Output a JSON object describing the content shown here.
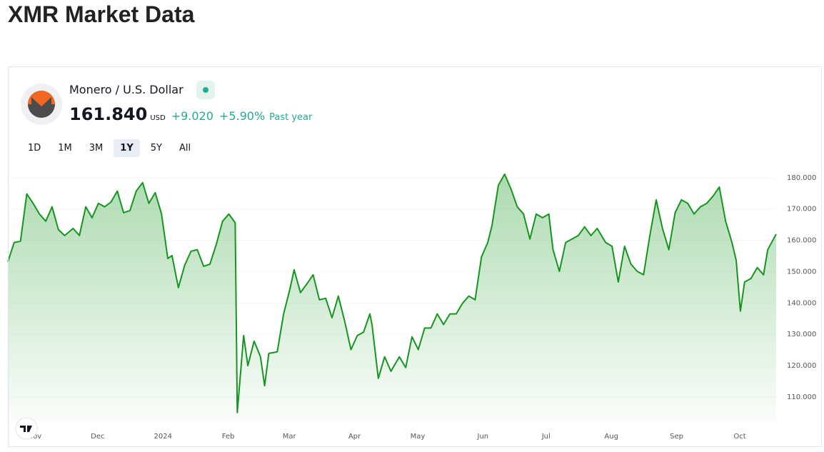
{
  "page": {
    "title": "XMR Market Data"
  },
  "widget": {
    "symbol": "Monero / U.S. Dollar",
    "price": "161.840",
    "currency": "USD",
    "change": "+9.020",
    "change_percent": "+5.90%",
    "period": "Past year",
    "ranges": [
      "1D",
      "1M",
      "3M",
      "1Y",
      "5Y",
      "All"
    ],
    "selected_range": "1Y"
  },
  "chart_data": {
    "type": "line",
    "color": "#14961e",
    "x": [
      0,
      3,
      6,
      9,
      12,
      15,
      18,
      21,
      24,
      27,
      31,
      34,
      37,
      40,
      43,
      46,
      49,
      52,
      55,
      58,
      61,
      64,
      67,
      70,
      73,
      76,
      78,
      81,
      84,
      87,
      90,
      93,
      96,
      99,
      102,
      105,
      108,
      109,
      112,
      114,
      117,
      120,
      122,
      124,
      128,
      131,
      134,
      136,
      139,
      142,
      145,
      148,
      151,
      154,
      157,
      160,
      163,
      166,
      169,
      172,
      173,
      176,
      179,
      182,
      186,
      189,
      192,
      195,
      198,
      201,
      204,
      207,
      210,
      213,
      216,
      219,
      222,
      225,
      228,
      230,
      233,
      236,
      239,
      242,
      245,
      248,
      251,
      254,
      257,
      259,
      262,
      265,
      268,
      271,
      274,
      277,
      280,
      284,
      287,
      290,
      293,
      296,
      299,
      302,
      305,
      308,
      311,
      314,
      317,
      320,
      323,
      326,
      329,
      332,
      335,
      338,
      341,
      344,
      346,
      348,
      350,
      353,
      356,
      359,
      361,
      365
    ],
    "values": [
      153.1,
      159.3,
      159.7,
      174.8,
      171.8,
      168.4,
      166.1,
      170.7,
      163.4,
      161.5,
      163.8,
      161.5,
      170.7,
      167.2,
      171.8,
      170.7,
      172.2,
      175.7,
      168.8,
      169.5,
      175.7,
      178.4,
      171.8,
      175.2,
      168.4,
      154.2,
      155.1,
      144.9,
      152,
      156.5,
      157,
      151.7,
      152.4,
      158.6,
      166.1,
      168.4,
      165.6,
      105,
      129.6,
      120,
      127.8,
      122.8,
      113.6,
      123.9,
      124.4,
      136.5,
      144.4,
      150.6,
      143.3,
      146,
      149,
      141,
      141.5,
      135.3,
      142.2,
      134.2,
      125.1,
      129.6,
      130.7,
      136.5,
      133.1,
      115.9,
      122.8,
      118.2,
      122.8,
      119.4,
      129.2,
      125.1,
      132,
      132,
      136.5,
      133.1,
      136.5,
      136.5,
      139.9,
      142.2,
      141,
      154.7,
      159.3,
      164.7,
      177.5,
      181.1,
      176.4,
      170.7,
      168.4,
      160.4,
      168.4,
      167.2,
      168.4,
      157,
      150.1,
      159.3,
      160.4,
      161.5,
      164.3,
      161.5,
      163.8,
      159.3,
      158.1,
      146.7,
      158.1,
      152.4,
      150.1,
      149,
      161.5,
      172.9,
      163.8,
      157,
      168.8,
      172.9,
      171.8,
      168.4,
      170.7,
      171.8,
      174.1,
      177,
      166.1,
      159.3,
      153.6,
      137.4,
      146.7,
      147.8,
      151.3,
      149,
      157,
      162
    ],
    "xlim": [
      0,
      365
    ],
    "xticks": [
      {
        "value": 11,
        "label": "Nov"
      },
      {
        "value": 41,
        "label": "Dec"
      },
      {
        "value": 72,
        "label": "2024"
      },
      {
        "value": 103,
        "label": "Feb"
      },
      {
        "value": 132,
        "label": "Mar"
      },
      {
        "value": 163,
        "label": "Apr"
      },
      {
        "value": 193,
        "label": "May"
      },
      {
        "value": 224,
        "label": "Jun"
      },
      {
        "value": 254,
        "label": "Jul"
      },
      {
        "value": 285,
        "label": "Aug"
      },
      {
        "value": 316,
        "label": "Sep"
      },
      {
        "value": 346,
        "label": "Oct"
      }
    ],
    "ylim": [
      102,
      182
    ],
    "yticks": [
      {
        "value": 110,
        "label": "110.000"
      },
      {
        "value": 120,
        "label": "120.000"
      },
      {
        "value": 130,
        "label": "130.000"
      },
      {
        "value": 140,
        "label": "140.000"
      },
      {
        "value": 150,
        "label": "150.000"
      },
      {
        "value": 160,
        "label": "160.000"
      },
      {
        "value": 170,
        "label": "170.000"
      },
      {
        "value": 180,
        "label": "180.000"
      }
    ],
    "grid": true
  }
}
